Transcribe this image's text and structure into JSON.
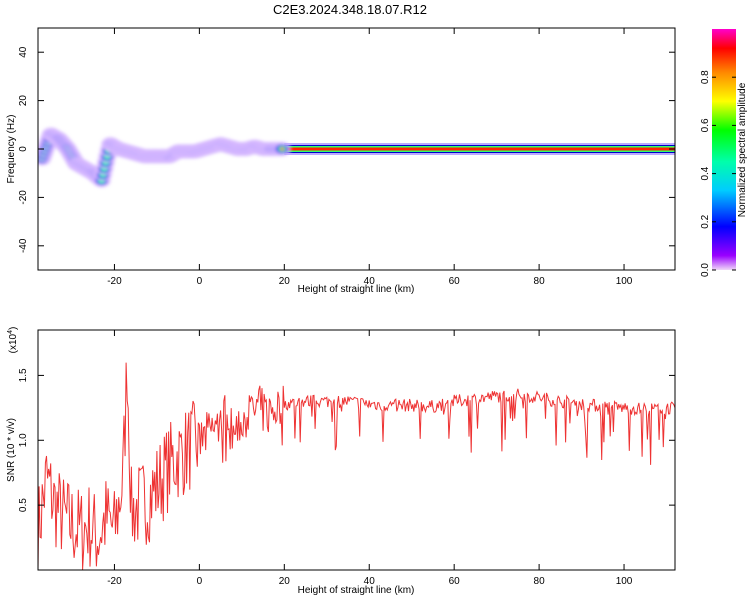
{
  "title": "C2E3.2024.348.18.07.R12",
  "colorbar": {
    "label": "Normalized spectral amplitude",
    "ticks": [
      0.0,
      0.2,
      0.4,
      0.6,
      0.8
    ],
    "tick_labels": [
      "0.0",
      "0.2",
      "0.4",
      "0.6",
      "0.8"
    ],
    "range": [
      0,
      1
    ]
  },
  "chart_data": [
    {
      "type": "heatmap",
      "title": "",
      "xlabel": "Height of straight line (km)",
      "ylabel": "Frequency (Hz)",
      "xlim": [
        -38,
        112
      ],
      "ylim": [
        -50,
        50
      ],
      "xticks": [
        -20,
        0,
        20,
        40,
        60,
        80,
        100
      ],
      "xtick_labels": [
        "-20",
        "0",
        "20",
        "40",
        "60",
        "80",
        "100"
      ],
      "yticks": [
        -40,
        -20,
        0,
        20,
        40
      ],
      "ytick_labels": [
        "-40",
        "-20",
        "0",
        "20",
        "40"
      ],
      "dominant_frequency_track": {
        "x": [
          -37,
          -35,
          -33,
          -31,
          -29,
          -27,
          -25,
          -23,
          -21,
          -19,
          -17,
          -15,
          -13,
          -11,
          -9,
          -7,
          -5,
          -3,
          -1,
          1,
          3,
          5,
          7,
          9,
          11,
          13,
          15,
          17,
          20,
          112
        ],
        "y": [
          -4,
          6,
          4,
          0,
          -6,
          -8,
          -10,
          -13,
          2,
          0,
          -1,
          -2,
          -3,
          -3,
          -3,
          -3,
          -1,
          -1,
          -1,
          0,
          1,
          2,
          1,
          0,
          0,
          1,
          0,
          0,
          0,
          0
        ]
      }
    },
    {
      "type": "line",
      "title": "",
      "xlabel": "Height of straight line (km)",
      "ylabel": "SNR (10 * v/v)",
      "y_multiplier_label": "(x10",
      "y_multiplier_exp": "4",
      "y_multiplier_close": ")",
      "xlim": [
        -38,
        112
      ],
      "ylim": [
        0,
        1.85
      ],
      "xticks": [
        -20,
        0,
        20,
        40,
        60,
        80,
        100
      ],
      "xtick_labels": [
        "-20",
        "0",
        "20",
        "40",
        "60",
        "80",
        "100"
      ],
      "yticks": [
        0.5,
        1.0,
        1.5
      ],
      "ytick_labels": [
        "0.5",
        "1.0",
        "1.5"
      ],
      "series": [
        {
          "color": "#ee3333",
          "x": [
            -38,
            -36,
            -34,
            -32,
            -30,
            -28,
            -26,
            -24,
            -22,
            -20,
            -18,
            -17,
            -16,
            -14,
            -12,
            -10,
            -8,
            -6,
            -4,
            -2,
            0,
            2,
            4,
            6,
            8,
            10,
            12,
            14,
            16,
            18,
            20,
            25,
            30,
            35,
            40,
            45,
            50,
            55,
            60,
            65,
            70,
            75,
            80,
            85,
            90,
            95,
            100,
            105,
            112
          ],
          "y": [
            0.3,
            0.7,
            0.5,
            0.4,
            0.35,
            0.3,
            0.35,
            0.25,
            0.4,
            0.3,
            0.7,
            1.6,
            0.45,
            0.5,
            0.55,
            0.65,
            0.75,
            0.85,
            0.9,
            0.95,
            0.98,
            1.05,
            1.1,
            1.2,
            1.05,
            1.15,
            1.2,
            1.25,
            1.2,
            1.25,
            1.28,
            1.3,
            1.3,
            1.3,
            1.28,
            1.27,
            1.27,
            1.26,
            1.3,
            1.32,
            1.34,
            1.35,
            1.33,
            1.3,
            1.28,
            1.26,
            1.25,
            1.24,
            1.25
          ]
        }
      ]
    }
  ]
}
